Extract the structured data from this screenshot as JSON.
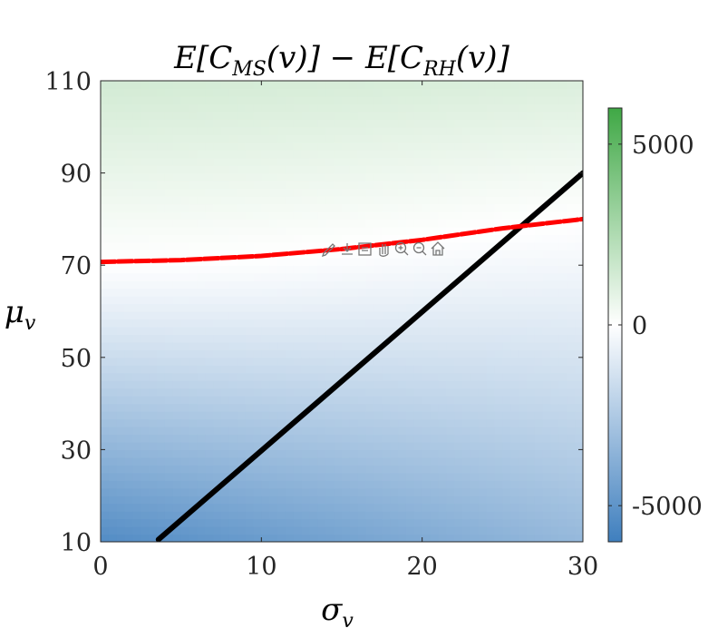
{
  "chart_data": {
    "type": "heatmap",
    "title": {
      "main_a": "E[C",
      "sub_a": "MS",
      "main_b": "(v)] − E[C",
      "sub_b": "RH",
      "main_c": "(v)]"
    },
    "xlabel": {
      "main": "σ",
      "sub": "v"
    },
    "ylabel": {
      "main": "μ",
      "sub": "v"
    },
    "xlim": [
      0,
      30
    ],
    "ylim": [
      10,
      110
    ],
    "xticks": [
      0,
      10,
      20,
      30
    ],
    "yticks": [
      10,
      30,
      50,
      70,
      90,
      110
    ],
    "colorbar": {
      "range": [
        -6000,
        6000
      ],
      "ticks": [
        -5000,
        0,
        5000
      ],
      "tick_labels": [
        "-5000",
        "0",
        "5000"
      ],
      "colors": {
        "low": "#3f7fbe",
        "mid": "#ffffff",
        "high": "#3fa845"
      }
    },
    "field": {
      "description_values": [
        {
          "sigma": 0,
          "mu": 10,
          "value": -5400
        },
        {
          "sigma": 30,
          "mu": 10,
          "value": -3300
        },
        {
          "sigma": 0,
          "mu": 70,
          "value": 0
        },
        {
          "sigma": 0,
          "mu": 110,
          "value": 1400
        },
        {
          "sigma": 30,
          "mu": 110,
          "value": 1100
        }
      ]
    },
    "series": [
      {
        "color": "#000000",
        "style": "solid",
        "points": [
          [
            3.6,
            10.5
          ],
          [
            30,
            90
          ]
        ]
      },
      {
        "color": "#ff0000",
        "style": "dashed",
        "points": [
          [
            0,
            70.7
          ],
          [
            5,
            71.1
          ],
          [
            10,
            72.0
          ],
          [
            15,
            73.5
          ],
          [
            20,
            75.5
          ],
          [
            25,
            78.0
          ],
          [
            30,
            80.0
          ]
        ]
      }
    ],
    "grid": false
  },
  "toolbar": {
    "icons": [
      "edit-icon",
      "export-icon",
      "data-tip-icon",
      "pan-icon",
      "zoom-in-icon",
      "zoom-out-icon",
      "home-icon"
    ]
  }
}
